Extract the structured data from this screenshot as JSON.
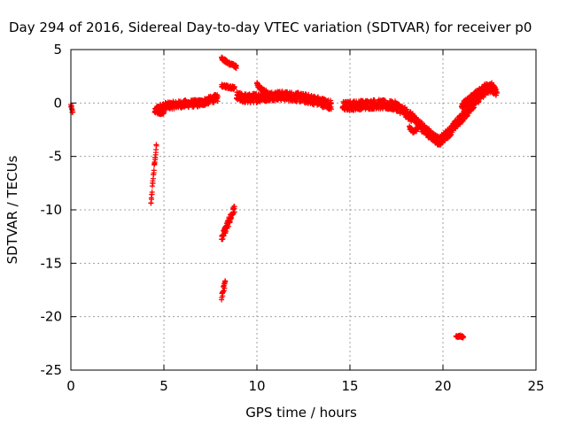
{
  "chart_data": {
    "type": "scatter",
    "title": "Day 294 of 2016, Sidereal Day-to-day VTEC variation (SDTVAR) for receiver p0",
    "xlabel": "GPS time / hours",
    "ylabel": "SDTVAR / TECUs",
    "xlim": [
      0,
      25
    ],
    "ylim": [
      -25,
      5
    ],
    "xticks": [
      0,
      5,
      10,
      15,
      20,
      25
    ],
    "yticks": [
      5,
      0,
      -5,
      -10,
      -15,
      -20,
      -25
    ],
    "grid": true,
    "marker": "+",
    "color": "#ff0000",
    "segments": [
      {
        "name": "seg-0",
        "x": [
          0.0,
          0.05,
          0.1
        ],
        "y": [
          -0.2,
          -0.6,
          -1.0
        ],
        "spread": 0.2
      },
      {
        "name": "seg-1",
        "x": [
          4.3,
          4.45,
          4.6
        ],
        "y": [
          -9.5,
          -6.5,
          -4.0
        ],
        "spread": 0.3
      },
      {
        "name": "seg-2",
        "x": [
          4.6,
          5.0,
          6.0,
          7.0,
          7.5,
          7.9
        ],
        "y": [
          -0.6,
          -0.3,
          -0.1,
          0.0,
          0.3,
          0.5
        ],
        "spread": 0.35
      },
      {
        "name": "seg-3",
        "x": [
          4.5,
          4.8,
          5.0
        ],
        "y": [
          -0.7,
          -0.9,
          -0.8
        ],
        "spread": 0.2
      },
      {
        "name": "seg-4",
        "x": [
          8.1,
          8.5,
          8.9
        ],
        "y": [
          4.2,
          3.7,
          3.4
        ],
        "spread": 0.15
      },
      {
        "name": "seg-5",
        "x": [
          8.1,
          8.5,
          8.8
        ],
        "y": [
          1.6,
          1.5,
          1.4
        ],
        "spread": 0.15
      },
      {
        "name": "seg-6",
        "x": [
          8.1,
          8.4,
          8.8
        ],
        "y": [
          -12.6,
          -11.5,
          -9.8
        ],
        "spread": 0.4
      },
      {
        "name": "seg-7",
        "x": [
          8.1,
          8.2,
          8.3
        ],
        "y": [
          -18.3,
          -17.5,
          -16.8
        ],
        "spread": 0.3
      },
      {
        "name": "seg-8",
        "x": [
          8.9,
          9.5,
          10.0,
          11.0,
          12.0,
          13.0,
          14.0
        ],
        "y": [
          0.6,
          0.4,
          0.5,
          0.7,
          0.6,
          0.3,
          -0.2
        ],
        "spread": 0.45
      },
      {
        "name": "seg-9",
        "x": [
          10.0,
          10.2,
          10.5
        ],
        "y": [
          1.8,
          1.3,
          1.0
        ],
        "spread": 0.2
      },
      {
        "name": "seg-10",
        "x": [
          14.6,
          15.5,
          16.5,
          17.5,
          18.0,
          18.5,
          19.0,
          19.5,
          19.8
        ],
        "y": [
          -0.3,
          -0.2,
          -0.1,
          -0.3,
          -0.9,
          -1.6,
          -2.5,
          -3.2,
          -3.6
        ],
        "spread": 0.45
      },
      {
        "name": "seg-11",
        "x": [
          18.2,
          18.4,
          18.6
        ],
        "y": [
          -2.3,
          -2.7,
          -2.5
        ],
        "spread": 0.15
      },
      {
        "name": "seg-12",
        "x": [
          19.8,
          20.3,
          20.8,
          21.3,
          21.8,
          22.2,
          22.6,
          22.9
        ],
        "y": [
          -3.6,
          -2.8,
          -1.8,
          -0.8,
          0.3,
          1.0,
          1.5,
          1.0
        ],
        "spread": 0.45
      },
      {
        "name": "seg-13",
        "x": [
          21.0,
          21.8,
          22.3,
          22.8
        ],
        "y": [
          -0.3,
          0.9,
          1.6,
          1.3
        ],
        "spread": 0.3
      },
      {
        "name": "seg-14",
        "x": [
          20.7,
          20.9,
          21.1
        ],
        "y": [
          -21.9,
          -21.8,
          -21.9
        ],
        "spread": 0.1
      }
    ]
  }
}
